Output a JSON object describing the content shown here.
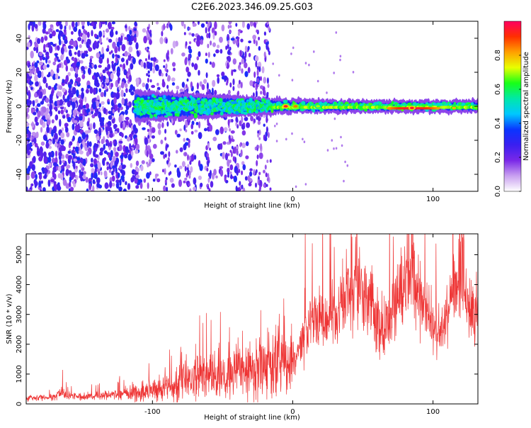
{
  "title": "C2E6.2023.346.09.25.G03",
  "chart_data": [
    {
      "type": "heatmap",
      "xlabel": "Height of straight line (km)",
      "ylabel": "Frequency (Hz)",
      "xlim": [
        -190,
        132
      ],
      "ylim": [
        -50,
        50
      ],
      "xticks": [
        -100,
        0,
        100
      ],
      "yticks": [
        -40,
        -20,
        0,
        20,
        40
      ],
      "colorbar": {
        "label": "Normalized spectral amplitude",
        "range": [
          0,
          1
        ],
        "ticks": [
          "0.0",
          "0.2",
          "0.4",
          "0.6",
          "0.8"
        ],
        "colors": [
          "#ffffff",
          "#c9a0f0",
          "#7a28e8",
          "#3a1ff0",
          "#0a35ff",
          "#00c8ff",
          "#00e8a8",
          "#18ff18",
          "#e8ff00",
          "#ffa000",
          "#ff3000",
          "#ff0060"
        ]
      },
      "features": {
        "noise_region_x": [
          -190,
          -18
        ],
        "signal_band_center_hz": 0,
        "signal_band_halfwidth_hz": [
          [
            -110,
            8
          ],
          [
            -60,
            6
          ],
          [
            -20,
            4
          ],
          [
            0,
            3
          ],
          [
            50,
            2.5
          ],
          [
            132,
            2.5
          ]
        ],
        "hot_spots": [
          {
            "x": -5,
            "y": 0,
            "v": 0.95
          },
          {
            "x": 2,
            "y": 0,
            "v": 0.85
          },
          {
            "x": 18,
            "y": 0,
            "v": 0.7
          },
          {
            "x": 85,
            "y": -1,
            "v": 0.95
          },
          {
            "x": 115,
            "y": -1,
            "v": 0.8
          }
        ]
      },
      "grid": false
    },
    {
      "type": "line",
      "xlabel": "Height of straight line (km)",
      "ylabel": "SNR (10 * v/v)",
      "xlim": [
        -190,
        132
      ],
      "ylim": [
        0,
        5700
      ],
      "xticks": [
        -100,
        0,
        100
      ],
      "yticks": [
        0,
        1000,
        2000,
        3000,
        4000,
        5000
      ],
      "color": "#ee3333",
      "series": [
        {
          "x": [
            -190,
            -180,
            -170,
            -165,
            -160,
            -150,
            -140,
            -130,
            -120,
            -110,
            -100,
            -90,
            -80,
            -70,
            -60,
            -50,
            -40,
            -30,
            -20,
            -10,
            -5,
            0,
            5,
            10,
            15,
            20,
            25,
            30,
            35,
            40,
            45,
            50,
            55,
            60,
            65,
            70,
            75,
            80,
            85,
            90,
            95,
            100,
            105,
            110,
            115,
            120,
            125,
            132
          ],
          "y": [
            200,
            220,
            230,
            420,
            260,
            250,
            280,
            300,
            340,
            400,
            480,
            600,
            760,
            880,
            950,
            1000,
            1050,
            1150,
            1300,
            1400,
            1450,
            1500,
            1800,
            2600,
            2900,
            2800,
            2700,
            2900,
            3300,
            3800,
            4300,
            4200,
            3600,
            2800,
            2500,
            2900,
            3500,
            3900,
            4100,
            3700,
            3100,
            2600,
            2500,
            3100,
            4200,
            4500,
            3400,
            3100
          ]
        }
      ],
      "grid": false
    }
  ]
}
